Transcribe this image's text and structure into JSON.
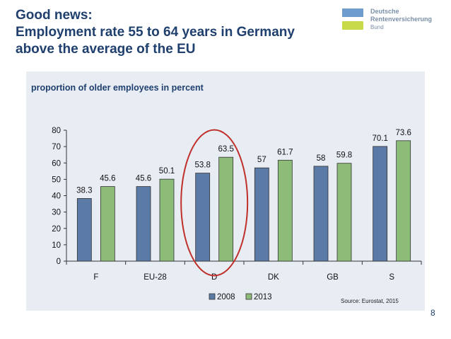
{
  "header": {
    "title_lines": [
      "Good news:",
      "Employment rate 55 to 64 years in Germany",
      "above the average of the EU"
    ]
  },
  "logo": {
    "line1": "Deutsche",
    "line2": "Rentenversicherung",
    "line3": "Bund"
  },
  "chart_data": {
    "type": "bar",
    "title": "proportion of older employees in percent",
    "categories": [
      "F",
      "EU-28",
      "D",
      "DK",
      "GB",
      "S"
    ],
    "series": [
      {
        "name": "2008",
        "values": [
          38.3,
          45.6,
          53.8,
          57,
          58,
          70.1
        ],
        "color": "#5b7aa6"
      },
      {
        "name": "2013",
        "values": [
          45.6,
          50.1,
          63.5,
          61.7,
          59.8,
          73.6
        ],
        "color": "#8dbb78"
      }
    ],
    "value_labels": [
      [
        "38.3",
        "45.6",
        "53.8",
        "57",
        "58",
        "70.1"
      ],
      [
        "45.6",
        "50.1",
        "63.5",
        "61.7",
        "59.8",
        "73.6"
      ]
    ],
    "ylim": [
      0,
      80
    ],
    "yticks": [
      0,
      10,
      20,
      30,
      40,
      50,
      60,
      70,
      80
    ],
    "legend_position": "bottom",
    "highlight_category": "D",
    "highlight_color": "#c0302b",
    "grid": false
  },
  "footer": {
    "source": "Source: Eurostat, 2015",
    "page_number": "8"
  }
}
